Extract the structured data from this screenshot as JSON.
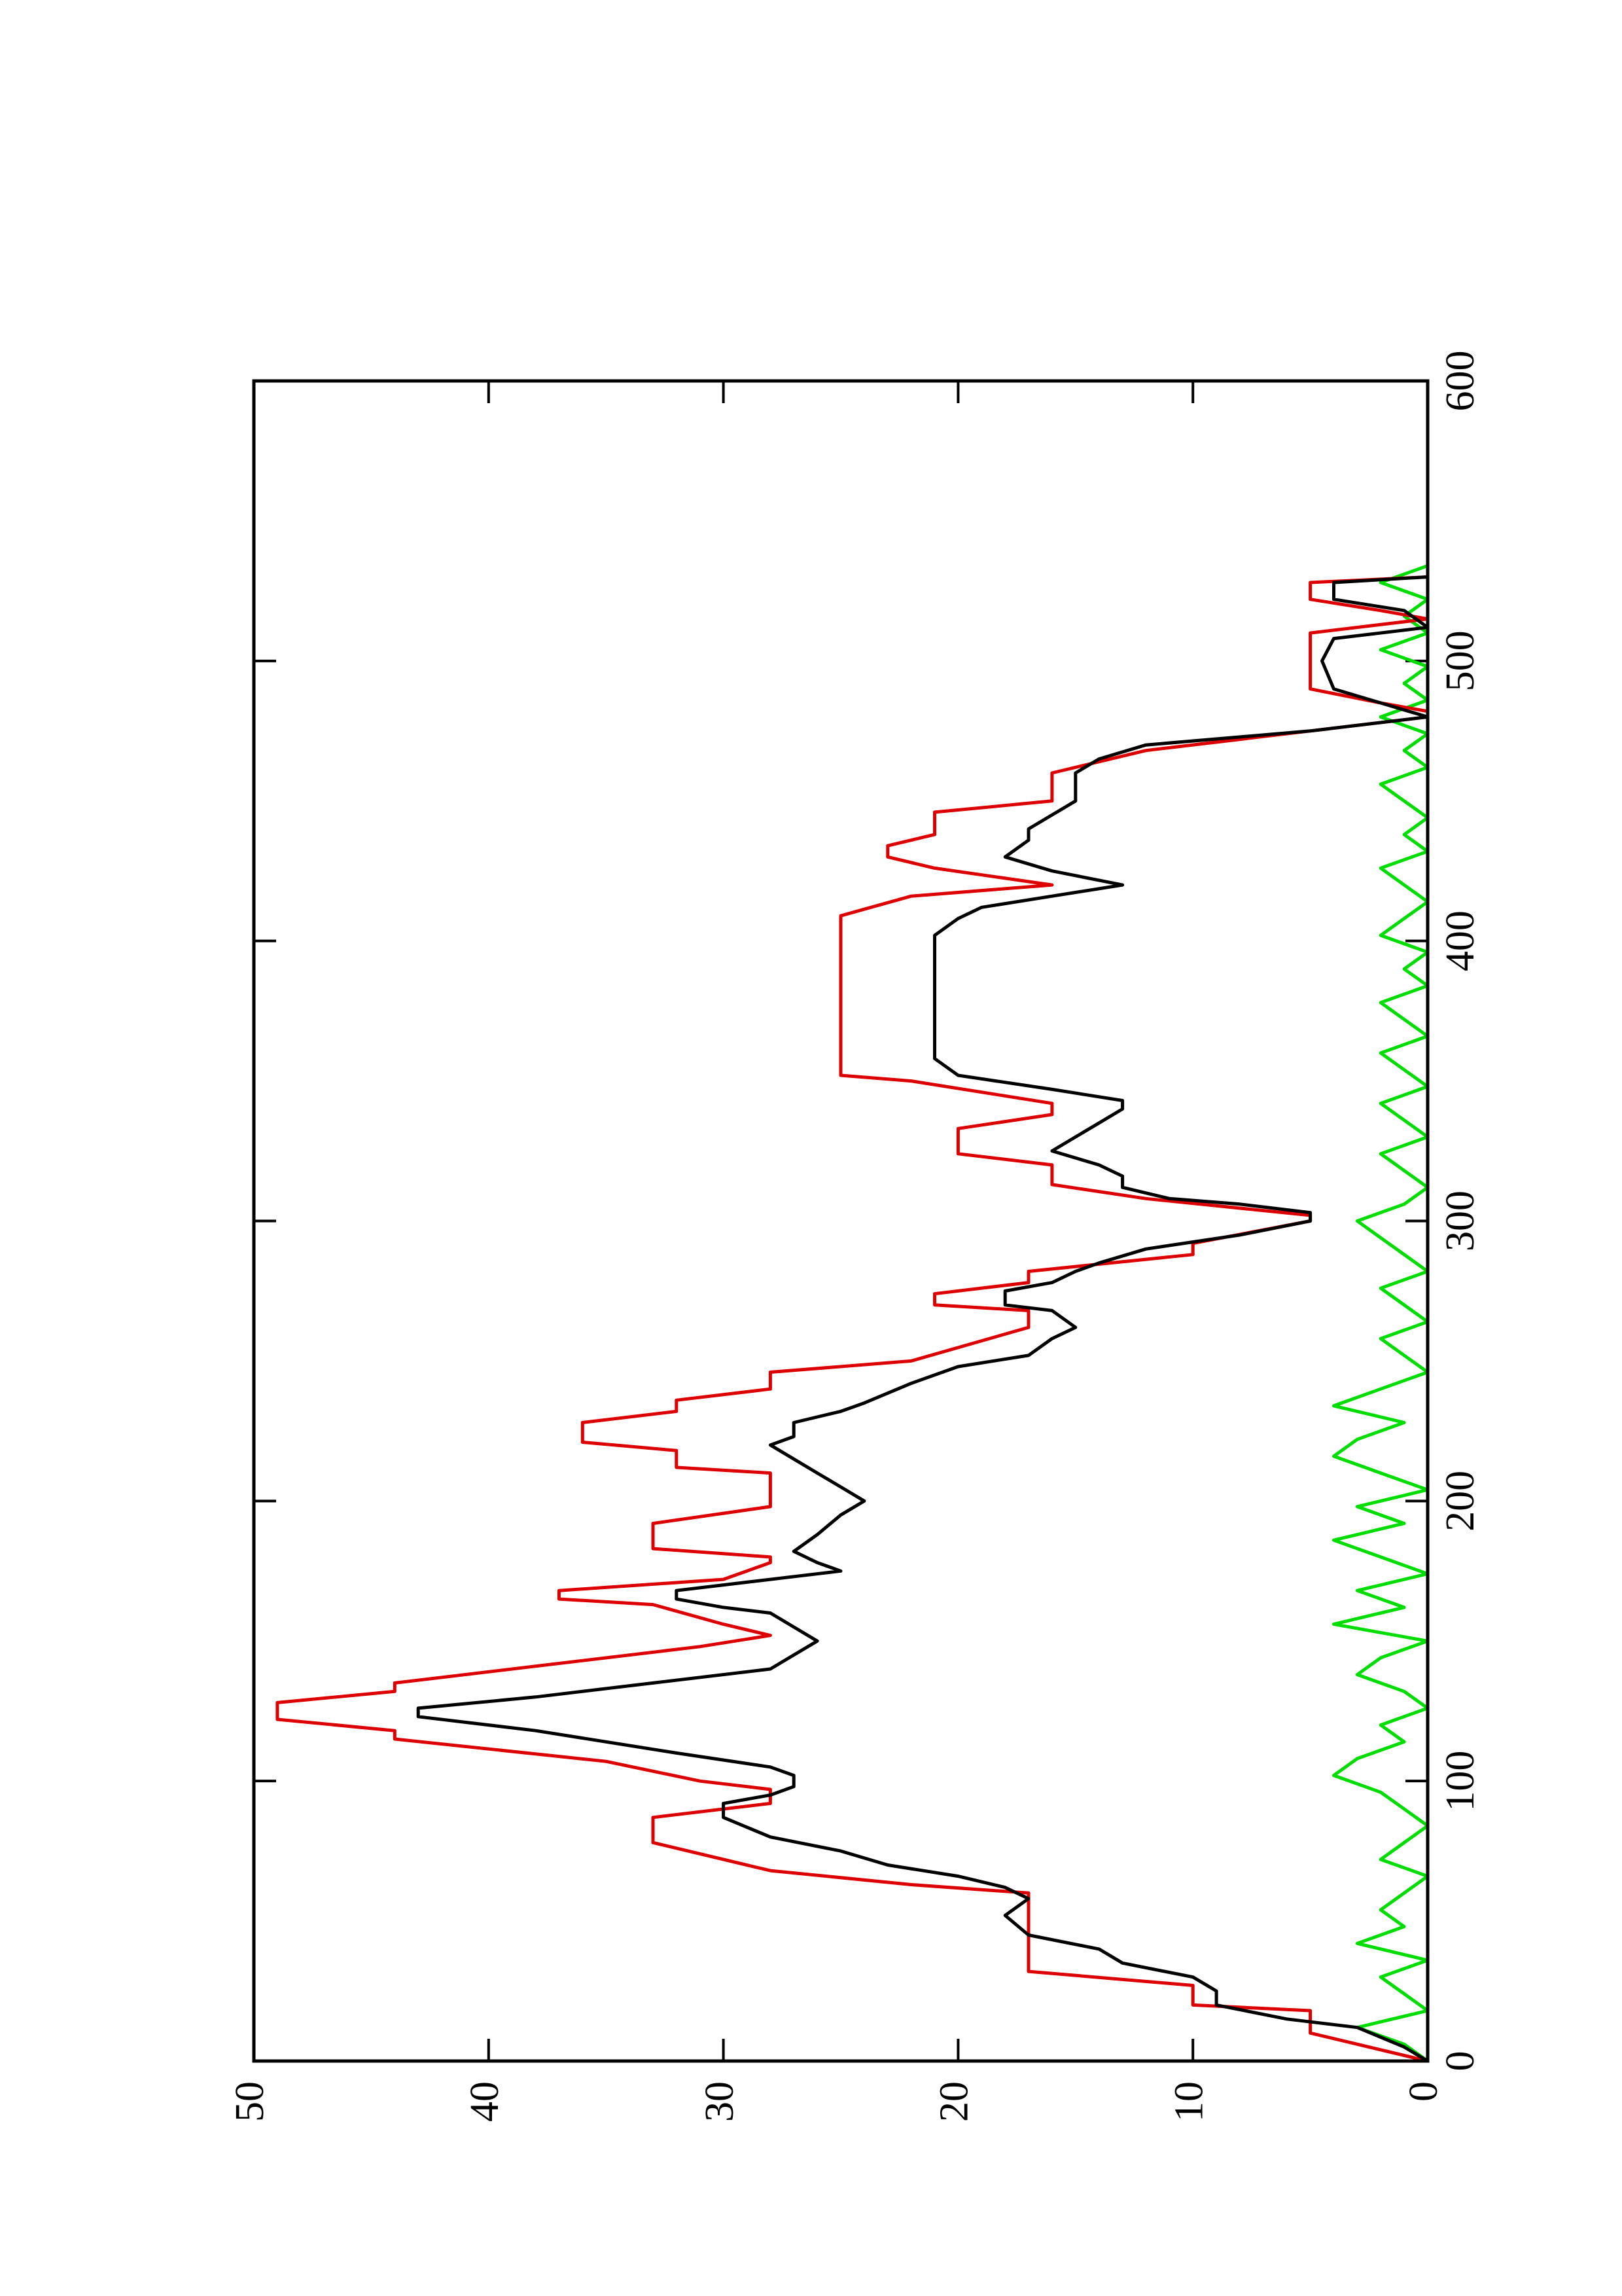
{
  "chart_data": {
    "type": "line",
    "xlim": [
      0,
      600
    ],
    "xticks": [
      0,
      100,
      200,
      300,
      400,
      500,
      600
    ],
    "ylim": [
      0,
      50
    ],
    "yticks": [
      0,
      10,
      20,
      30,
      40,
      50
    ],
    "rotated": true,
    "series": [
      {
        "color": "#000000",
        "x": [
          0,
          5,
          12,
          15,
          20,
          25,
          30,
          35,
          40,
          45,
          52,
          58,
          62,
          66,
          70,
          75,
          80,
          87,
          92,
          95,
          98,
          102,
          105,
          110,
          118,
          123,
          126,
          130,
          135,
          140,
          145,
          150,
          155,
          160,
          162,
          165,
          168,
          172,
          175,
          178,
          182,
          188,
          195,
          200,
          205,
          210,
          215,
          220,
          223,
          228,
          232,
          235,
          242,
          248,
          252,
          258,
          262,
          268,
          270,
          275,
          278,
          282,
          285,
          290,
          295,
          300,
          303,
          306,
          308,
          312,
          316,
          320,
          325,
          330,
          335,
          340,
          343,
          347,
          352,
          358,
          365,
          372,
          378,
          385,
          392,
          402,
          408,
          412,
          416,
          420,
          425,
          430,
          436,
          440,
          445,
          450,
          460,
          465,
          470,
          475,
          480,
          485,
          490,
          500,
          508,
          512,
          518,
          522,
          528,
          530,
          535
        ],
        "values": [
          0,
          1,
          3,
          6,
          9,
          9,
          10,
          13,
          14,
          17,
          18,
          17,
          18,
          20,
          23,
          25,
          28,
          30,
          30,
          28,
          27,
          27,
          28,
          32,
          38,
          43,
          43,
          38,
          33,
          28,
          27,
          26,
          27,
          28,
          30,
          32,
          32,
          28,
          25,
          26,
          27,
          26,
          25,
          24,
          25,
          26,
          27,
          28,
          27,
          27,
          25,
          24,
          22,
          20,
          17,
          16,
          15,
          16,
          18,
          18,
          16,
          15,
          14,
          12,
          8,
          5,
          5,
          8,
          11,
          13,
          13,
          14,
          16,
          15,
          14,
          13,
          13,
          16,
          20,
          21,
          21,
          21,
          21,
          21,
          21,
          21,
          20,
          19,
          16,
          13,
          16,
          18,
          17,
          17,
          16,
          15,
          15,
          14,
          12,
          5,
          0,
          2,
          4,
          4.5,
          4,
          0,
          1,
          4,
          4,
          0,
          0
        ]
      },
      {
        "color": "#dd0000",
        "x": [
          0,
          10,
          18,
          20,
          27,
          32,
          60,
          63,
          68,
          78,
          87,
          92,
          97,
          100,
          107,
          115,
          118,
          122,
          128,
          132,
          135,
          148,
          152,
          156,
          163,
          165,
          168,
          172,
          178,
          180,
          183,
          192,
          198,
          210,
          212,
          218,
          221,
          228,
          232,
          236,
          240,
          246,
          250,
          262,
          268,
          270,
          274,
          278,
          282,
          288,
          292,
          300,
          302,
          308,
          313,
          320,
          324,
          333,
          338,
          342,
          350,
          352,
          409,
          416,
          420,
          426,
          430,
          434,
          438,
          446,
          450,
          460,
          468,
          475,
          480,
          482,
          485,
          490,
          510,
          515,
          518,
          522,
          528,
          530,
          535
        ],
        "values": [
          0,
          5,
          5,
          10,
          10,
          17,
          17,
          22,
          28,
          33,
          33,
          28,
          28,
          31,
          35,
          44,
          44,
          49,
          49,
          44,
          44,
          31,
          28,
          30,
          33,
          37,
          37,
          30,
          28,
          28,
          33,
          33,
          28,
          28,
          32,
          32,
          36,
          36,
          32,
          32,
          28,
          28,
          22,
          17,
          17,
          21,
          21,
          17,
          17,
          10,
          10,
          5,
          5,
          12,
          16,
          16,
          20,
          20,
          16,
          16,
          22,
          25,
          25,
          22,
          16,
          21,
          23,
          23,
          21,
          21,
          16,
          16,
          12,
          5,
          0,
          0,
          2,
          5,
          5,
          0,
          2,
          5,
          5,
          0,
          0
        ]
      },
      {
        "color": "#00dd00",
        "x": [
          0,
          6,
          12,
          18,
          24,
          30,
          36,
          42,
          48,
          54,
          60,
          66,
          72,
          78,
          84,
          90,
          96,
          102,
          108,
          114,
          120,
          126,
          132,
          138,
          144,
          150,
          156,
          162,
          168,
          174,
          180,
          186,
          192,
          198,
          204,
          210,
          216,
          222,
          228,
          234,
          240,
          246,
          252,
          258,
          264,
          270,
          276,
          282,
          288,
          294,
          300,
          306,
          312,
          318,
          324,
          330,
          336,
          342,
          348,
          354,
          360,
          366,
          372,
          378,
          384,
          390,
          396,
          402,
          408,
          414,
          420,
          426,
          432,
          438,
          444,
          450,
          456,
          462,
          468,
          474,
          480,
          486,
          492,
          498,
          504,
          510,
          516,
          522,
          528,
          534
        ],
        "values": [
          0,
          1,
          3,
          0,
          1,
          2,
          0,
          3,
          1,
          2,
          1,
          0,
          2,
          1,
          0,
          1,
          2,
          4,
          3,
          1,
          2,
          0,
          1,
          3,
          2,
          0,
          4,
          1,
          3,
          0,
          2,
          4,
          1,
          3,
          0,
          2,
          4,
          3,
          1,
          4,
          2,
          0,
          1,
          2,
          0,
          1,
          2,
          0,
          1,
          2,
          3,
          1,
          0,
          1,
          2,
          0,
          1,
          2,
          0,
          1,
          2,
          0,
          1,
          2,
          0,
          1,
          0,
          2,
          1,
          0,
          1,
          2,
          0,
          1,
          0,
          1,
          2,
          0,
          1,
          0,
          2,
          0,
          1,
          0,
          2,
          0,
          1,
          0,
          2,
          0
        ]
      }
    ]
  }
}
